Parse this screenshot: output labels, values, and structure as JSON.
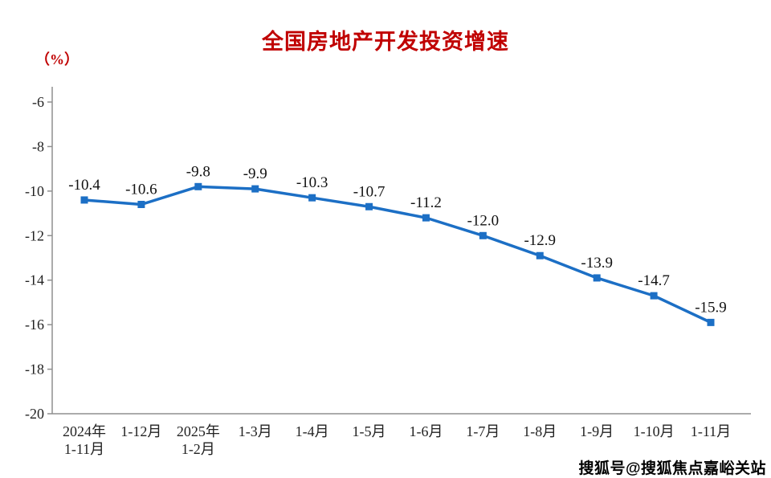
{
  "watermark": {
    "text": "搜狐号@搜狐焦点嘉峪关站"
  },
  "chart_data": {
    "type": "line",
    "title": "全国房地产开发投资增速",
    "unit_label": "（%）",
    "xlabel": "",
    "ylabel": "（%）",
    "categories": [
      [
        "2024年",
        "1-11月"
      ],
      [
        "1-12月"
      ],
      [
        "2025年",
        "1-2月"
      ],
      [
        "1-3月"
      ],
      [
        "1-4月"
      ],
      [
        "1-5月"
      ],
      [
        "1-6月"
      ],
      [
        "1-7月"
      ],
      [
        "1-8月"
      ],
      [
        "1-9月"
      ],
      [
        "1-10月"
      ],
      [
        "1-11月"
      ]
    ],
    "values": [
      -10.4,
      -10.6,
      -9.8,
      -9.9,
      -10.3,
      -10.7,
      -11.2,
      -12.0,
      -12.9,
      -13.9,
      -14.7,
      -15.9
    ],
    "data_labels": [
      "-10.4",
      "-10.6",
      "-9.8",
      "-9.9",
      "-10.3",
      "-10.7",
      "-11.2",
      "-12.0",
      "-12.9",
      "-13.9",
      "-14.7",
      "-15.9"
    ],
    "ylim": [
      -20,
      -6
    ],
    "yticks": [
      -6,
      -8,
      -10,
      -12,
      -14,
      -16,
      -18,
      -20
    ],
    "line_color": "#1c6fc5",
    "marker": "square",
    "grid": false,
    "legend": "none"
  }
}
